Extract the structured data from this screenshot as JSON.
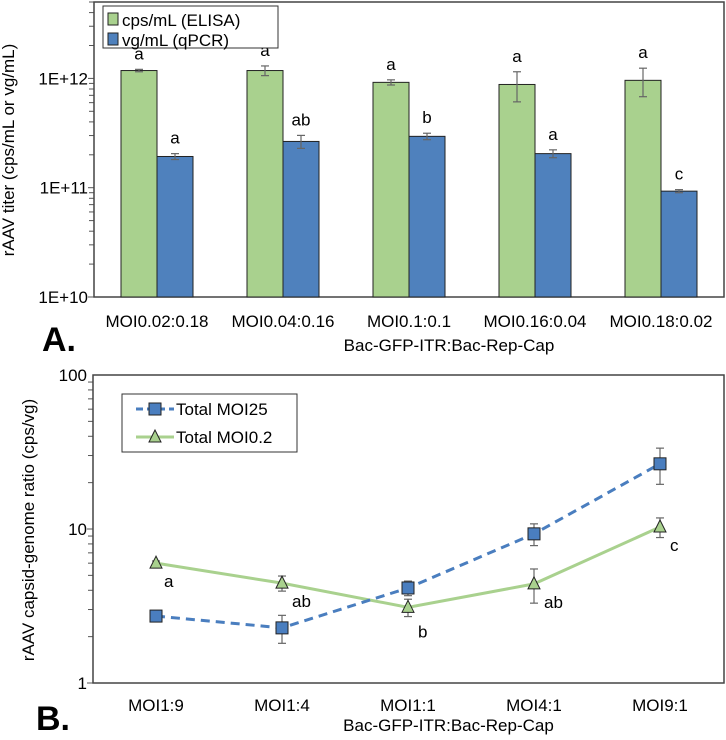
{
  "chart_data": [
    {
      "panel_label": "A.",
      "type": "bar",
      "yscale": "log",
      "ylim": [
        10000000000.0,
        5000000000000.0
      ],
      "ylabel": "rAAV titer (cps/mL or vg/mL)",
      "xlabel": "Bac-GFP-ITR:Bac-Rep-Cap",
      "yticks": [
        {
          "value": 10000000000.0,
          "label": "1E+10"
        },
        {
          "value": 100000000000.0,
          "label": "1E+11"
        },
        {
          "value": 1000000000000.0,
          "label": "1E+12"
        }
      ],
      "categories": [
        "MOI0.02:0.18",
        "MOI0.04:0.16",
        "MOI0.1:0.1",
        "MOI0.16:0.04",
        "MOI0.18:0.02"
      ],
      "legend_position": "top-left",
      "series": [
        {
          "name": "cps/mL (ELISA)",
          "color": "#a9d18e",
          "values": [
            1180000000000.0,
            1180000000000.0,
            920000000000.0,
            880000000000.0,
            960000000000.0
          ],
          "errors": [
            30000000000.0,
            120000000000.0,
            50000000000.0,
            270000000000.0,
            280000000000.0
          ],
          "annotations": [
            "a",
            "a",
            "a",
            "a",
            "a"
          ]
        },
        {
          "name": "vg/mL (qPCR)",
          "color": "#4f81bd",
          "values": [
            193000000000.0,
            265000000000.0,
            295000000000.0,
            205000000000.0,
            93000000000.0
          ],
          "errors": [
            12000000000.0,
            36000000000.0,
            20000000000.0,
            17000000000.0,
            3000000000.0
          ],
          "annotations": [
            "a",
            "ab",
            "b",
            "a",
            "c"
          ]
        }
      ]
    },
    {
      "panel_label": "B.",
      "type": "line",
      "yscale": "log",
      "ylim": [
        1,
        100
      ],
      "ylabel": "rAAV capsid-genome ratio (cps/vg)",
      "xlabel": "Bac-GFP-ITR:Bac-Rep-Cap",
      "yticks": [
        {
          "value": 1,
          "label": "1"
        },
        {
          "value": 10,
          "label": "10"
        },
        {
          "value": 100,
          "label": "100"
        }
      ],
      "categories": [
        "MOI1:9",
        "MOI1:4",
        "MOI1:1",
        "MOI4:1",
        "MOI9:1"
      ],
      "legend_position": "top-left",
      "series": [
        {
          "name": "Total MOI25",
          "color": "#4a7ebf",
          "marker": "square",
          "dash": true,
          "values": [
            2.72,
            2.28,
            4.14,
            9.3,
            26.5
          ],
          "errors": [
            0.1,
            0.47,
            0.45,
            1.5,
            7.0
          ],
          "annotations": []
        },
        {
          "name": "Total MOI0.2",
          "color": "#a9d18e",
          "marker": "triangle",
          "dash": false,
          "values": [
            6.0,
            4.45,
            3.1,
            4.4,
            10.3
          ],
          "errors": [
            0.2,
            0.5,
            0.4,
            1.1,
            1.5
          ],
          "annotations": [
            "a",
            "ab",
            "b",
            "ab",
            "c"
          ]
        }
      ]
    }
  ]
}
